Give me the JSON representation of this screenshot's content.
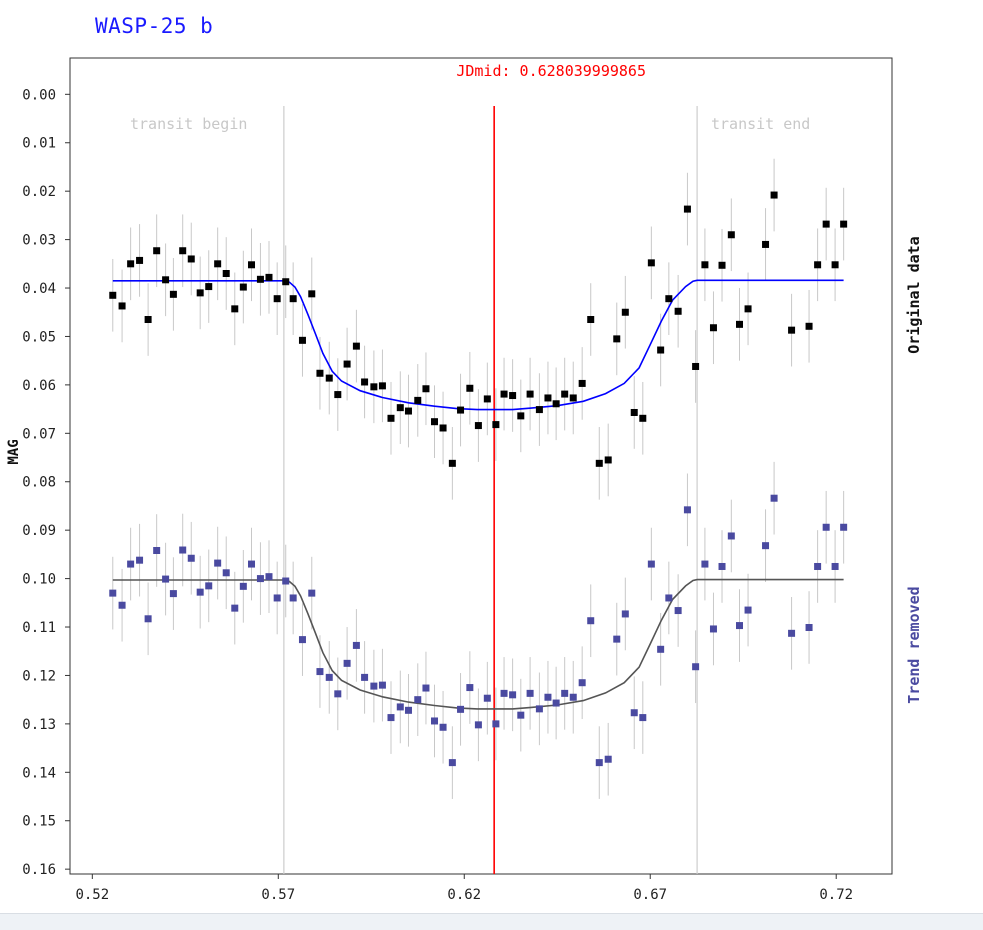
{
  "chart_data": {
    "type": "scatter",
    "title": "WASP-25 b",
    "ylabel": "MAG",
    "xlim": [
      0.514,
      0.735
    ],
    "ylim": [
      0.161,
      -0.0075
    ],
    "y_inverted": true,
    "x_ticks": [
      "0.52",
      "0.57",
      "0.62",
      "0.67",
      "0.72"
    ],
    "y_ticks": [
      "0.00",
      "0.01",
      "0.02",
      "0.03",
      "0.04",
      "0.05",
      "0.06",
      "0.07",
      "0.08",
      "0.09",
      "0.10",
      "0.11",
      "0.12",
      "0.13",
      "0.14",
      "0.15",
      "0.16"
    ],
    "grid": false,
    "annotations": {
      "jdmid": {
        "label": "JDmid: 0.628039999865",
        "x": 0.62804,
        "color": "#ff0000"
      },
      "transit_begin": {
        "label": "transit begin",
        "x": 0.5715,
        "color": "#cccccc"
      },
      "transit_end": {
        "label": "transit end",
        "x": 0.6826,
        "color": "#cccccc"
      }
    },
    "error_bar": 0.0075,
    "series": [
      {
        "name": "Original data",
        "color": "#000000",
        "model_color": "#0000ff",
        "x": [
          0.5255,
          0.528,
          0.5303,
          0.5327,
          0.535,
          0.5373,
          0.5397,
          0.5418,
          0.5443,
          0.5466,
          0.549,
          0.5513,
          0.5537,
          0.556,
          0.5583,
          0.5606,
          0.5628,
          0.5652,
          0.5675,
          0.5697,
          0.572,
          0.574,
          0.5765,
          0.579,
          0.5812,
          0.5837,
          0.586,
          0.5885,
          0.591,
          0.5932,
          0.5957,
          0.598,
          0.6003,
          0.6028,
          0.605,
          0.6075,
          0.6097,
          0.612,
          0.6143,
          0.6168,
          0.619,
          0.6215,
          0.6238,
          0.6262,
          0.6285,
          0.6307,
          0.633,
          0.6352,
          0.6377,
          0.6402,
          0.6425,
          0.6447,
          0.647,
          0.6493,
          0.6517,
          0.654,
          0.6563,
          0.6587,
          0.661,
          0.6633,
          0.6657,
          0.668,
          0.6703,
          0.6728,
          0.675,
          0.6775,
          0.68,
          0.6822,
          0.6847,
          0.687,
          0.6893,
          0.6918,
          0.694,
          0.6963,
          0.701,
          0.7033,
          0.708,
          0.7127,
          0.715,
          0.7173,
          0.7197,
          0.722
        ],
        "y": [
          0.0415,
          0.0437,
          0.035,
          0.0343,
          0.0465,
          0.0323,
          0.0383,
          0.0413,
          0.0323,
          0.034,
          0.041,
          0.0397,
          0.035,
          0.037,
          0.0443,
          0.0398,
          0.0352,
          0.0382,
          0.0378,
          0.0422,
          0.0387,
          0.0422,
          0.0508,
          0.0412,
          0.0576,
          0.0586,
          0.062,
          0.0557,
          0.052,
          0.0594,
          0.0604,
          0.0602,
          0.0669,
          0.0647,
          0.0654,
          0.0632,
          0.0608,
          0.0676,
          0.0689,
          0.0762,
          0.0652,
          0.0607,
          0.0684,
          0.0629,
          0.0682,
          0.0619,
          0.0622,
          0.0664,
          0.0619,
          0.0651,
          0.0627,
          0.0639,
          0.0619,
          0.0627,
          0.0597,
          0.0465,
          0.0762,
          0.0755,
          0.0505,
          0.045,
          0.0657,
          0.0669,
          0.0348,
          0.0528,
          0.0422,
          0.0448,
          0.0237,
          0.0562,
          0.0352,
          0.0482,
          0.0353,
          0.029,
          0.0475,
          0.0443,
          0.031,
          0.0208,
          0.0487,
          0.0479,
          0.0352,
          0.0268,
          0.0352,
          0.0268
        ],
        "model_x": [
          0.5255,
          0.56,
          0.5715,
          0.573,
          0.5745,
          0.576,
          0.578,
          0.58,
          0.582,
          0.5845,
          0.587,
          0.592,
          0.598,
          0.605,
          0.612,
          0.618,
          0.6235,
          0.628,
          0.633,
          0.638,
          0.645,
          0.652,
          0.658,
          0.663,
          0.667,
          0.67,
          0.673,
          0.676,
          0.6795,
          0.6815,
          0.6826,
          0.69,
          0.722
        ],
        "model_y": [
          0.0385,
          0.0385,
          0.0385,
          0.0388,
          0.0398,
          0.0418,
          0.0455,
          0.0495,
          0.0535,
          0.0572,
          0.0592,
          0.0612,
          0.0626,
          0.0637,
          0.0644,
          0.0649,
          0.0651,
          0.0651,
          0.0651,
          0.0648,
          0.0643,
          0.0634,
          0.0618,
          0.0597,
          0.0565,
          0.0517,
          0.0468,
          0.0425,
          0.0397,
          0.0386,
          0.0384,
          0.0384,
          0.0384
        ]
      },
      {
        "name": "Trend removed",
        "color": "#4a4aa0",
        "model_color": "#555555",
        "x": [
          0.5255,
          0.528,
          0.5303,
          0.5327,
          0.535,
          0.5373,
          0.5397,
          0.5418,
          0.5443,
          0.5466,
          0.549,
          0.5513,
          0.5537,
          0.556,
          0.5583,
          0.5606,
          0.5628,
          0.5652,
          0.5675,
          0.5697,
          0.572,
          0.574,
          0.5765,
          0.579,
          0.5812,
          0.5837,
          0.586,
          0.5885,
          0.591,
          0.5932,
          0.5957,
          0.598,
          0.6003,
          0.6028,
          0.605,
          0.6075,
          0.6097,
          0.612,
          0.6143,
          0.6168,
          0.619,
          0.6215,
          0.6238,
          0.6262,
          0.6285,
          0.6307,
          0.633,
          0.6352,
          0.6377,
          0.6402,
          0.6425,
          0.6447,
          0.647,
          0.6493,
          0.6517,
          0.654,
          0.6563,
          0.6587,
          0.661,
          0.6633,
          0.6657,
          0.668,
          0.6703,
          0.6728,
          0.675,
          0.6775,
          0.68,
          0.6822,
          0.6847,
          0.687,
          0.6893,
          0.6918,
          0.694,
          0.6963,
          0.701,
          0.7033,
          0.708,
          0.7127,
          0.715,
          0.7173,
          0.7197,
          0.722
        ],
        "y": [
          0.103,
          0.1055,
          0.097,
          0.0962,
          0.1083,
          0.0942,
          0.1001,
          0.1031,
          0.0941,
          0.0958,
          0.1028,
          0.1015,
          0.0968,
          0.0988,
          0.1061,
          0.1016,
          0.097,
          0.1,
          0.0996,
          0.104,
          0.1005,
          0.104,
          0.1126,
          0.103,
          0.1192,
          0.1204,
          0.1238,
          0.1175,
          0.1138,
          0.1204,
          0.1222,
          0.122,
          0.1287,
          0.1265,
          0.1272,
          0.125,
          0.1226,
          0.1294,
          0.1307,
          0.138,
          0.127,
          0.1225,
          0.1302,
          0.1247,
          0.13,
          0.1237,
          0.124,
          0.1282,
          0.1237,
          0.1269,
          0.1245,
          0.1257,
          0.1237,
          0.1245,
          0.1215,
          0.1087,
          0.138,
          0.1373,
          0.1125,
          0.1073,
          0.1277,
          0.1287,
          0.097,
          0.1146,
          0.104,
          0.1066,
          0.0858,
          0.1182,
          0.097,
          0.1104,
          0.0975,
          0.0912,
          0.1097,
          0.1065,
          0.0932,
          0.0834,
          0.1113,
          0.1101,
          0.0975,
          0.0894,
          0.0975,
          0.0894
        ],
        "model_x": [
          0.5255,
          0.56,
          0.5715,
          0.573,
          0.5745,
          0.576,
          0.578,
          0.58,
          0.582,
          0.5845,
          0.587,
          0.592,
          0.598,
          0.605,
          0.612,
          0.618,
          0.6235,
          0.628,
          0.633,
          0.638,
          0.645,
          0.652,
          0.658,
          0.663,
          0.667,
          0.67,
          0.673,
          0.676,
          0.6795,
          0.6815,
          0.6826,
          0.69,
          0.722
        ],
        "model_y": [
          0.1003,
          0.1003,
          0.1003,
          0.1006,
          0.1016,
          0.1036,
          0.1073,
          0.1113,
          0.1153,
          0.119,
          0.121,
          0.123,
          0.1244,
          0.1255,
          0.1262,
          0.1267,
          0.1269,
          0.1269,
          0.1269,
          0.1266,
          0.1261,
          0.1252,
          0.1236,
          0.1215,
          0.1183,
          0.1135,
          0.1086,
          0.1043,
          0.1015,
          0.1004,
          0.1002,
          0.1002,
          0.1002
        ]
      }
    ]
  }
}
